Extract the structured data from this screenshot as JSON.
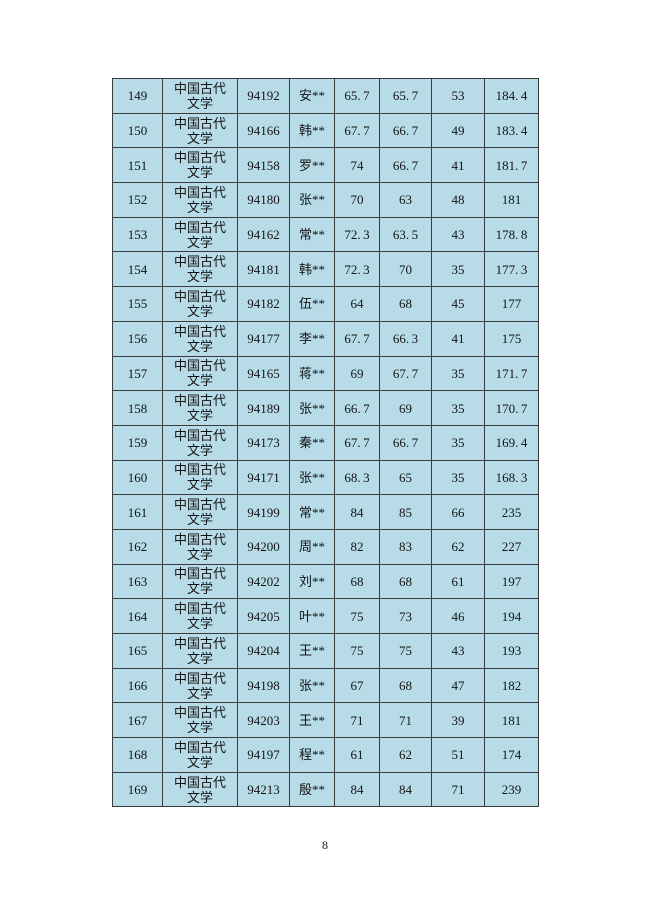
{
  "page": {
    "number": "8",
    "background_color": "#ffffff"
  },
  "table": {
    "cell_background_color": "#b7dce8",
    "border_color": "#3a3a3a",
    "text_color": "#141414",
    "major_label": "中国古代文学",
    "rows": [
      [
        "149",
        "中国古代文学",
        "94192",
        "安**",
        "65.7",
        "65.7",
        "53",
        "184.4"
      ],
      [
        "150",
        "中国古代文学",
        "94166",
        "韩**",
        "67.7",
        "66.7",
        "49",
        "183.4"
      ],
      [
        "151",
        "中国古代文学",
        "94158",
        "罗**",
        "74",
        "66.7",
        "41",
        "181.7"
      ],
      [
        "152",
        "中国古代文学",
        "94180",
        "张**",
        "70",
        "63",
        "48",
        "181"
      ],
      [
        "153",
        "中国古代文学",
        "94162",
        "常**",
        "72.3",
        "63.5",
        "43",
        "178.8"
      ],
      [
        "154",
        "中国古代文学",
        "94181",
        "韩**",
        "72.3",
        "70",
        "35",
        "177.3"
      ],
      [
        "155",
        "中国古代文学",
        "94182",
        "伍**",
        "64",
        "68",
        "45",
        "177"
      ],
      [
        "156",
        "中国古代文学",
        "94177",
        "李**",
        "67.7",
        "66.3",
        "41",
        "175"
      ],
      [
        "157",
        "中国古代文学",
        "94165",
        "蒋**",
        "69",
        "67.7",
        "35",
        "171.7"
      ],
      [
        "158",
        "中国古代文学",
        "94189",
        "张**",
        "66.7",
        "69",
        "35",
        "170.7"
      ],
      [
        "159",
        "中国古代文学",
        "94173",
        "秦**",
        "67.7",
        "66.7",
        "35",
        "169.4"
      ],
      [
        "160",
        "中国古代文学",
        "94171",
        "张**",
        "68.3",
        "65",
        "35",
        "168.3"
      ],
      [
        "161",
        "中国古代文学",
        "94199",
        "常**",
        "84",
        "85",
        "66",
        "235"
      ],
      [
        "162",
        "中国古代文学",
        "94200",
        "周**",
        "82",
        "83",
        "62",
        "227"
      ],
      [
        "163",
        "中国古代文学",
        "94202",
        "刘**",
        "68",
        "68",
        "61",
        "197"
      ],
      [
        "164",
        "中国古代文学",
        "94205",
        "叶**",
        "75",
        "73",
        "46",
        "194"
      ],
      [
        "165",
        "中国古代文学",
        "94204",
        "王**",
        "75",
        "75",
        "43",
        "193"
      ],
      [
        "166",
        "中国古代文学",
        "94198",
        "张**",
        "67",
        "68",
        "47",
        "182"
      ],
      [
        "167",
        "中国古代文学",
        "94203",
        "王**",
        "71",
        "71",
        "39",
        "181"
      ],
      [
        "168",
        "中国古代文学",
        "94197",
        "程**",
        "61",
        "62",
        "51",
        "174"
      ],
      [
        "169",
        "中国古代文学",
        "94213",
        "殷**",
        "84",
        "84",
        "71",
        "239"
      ]
    ]
  }
}
